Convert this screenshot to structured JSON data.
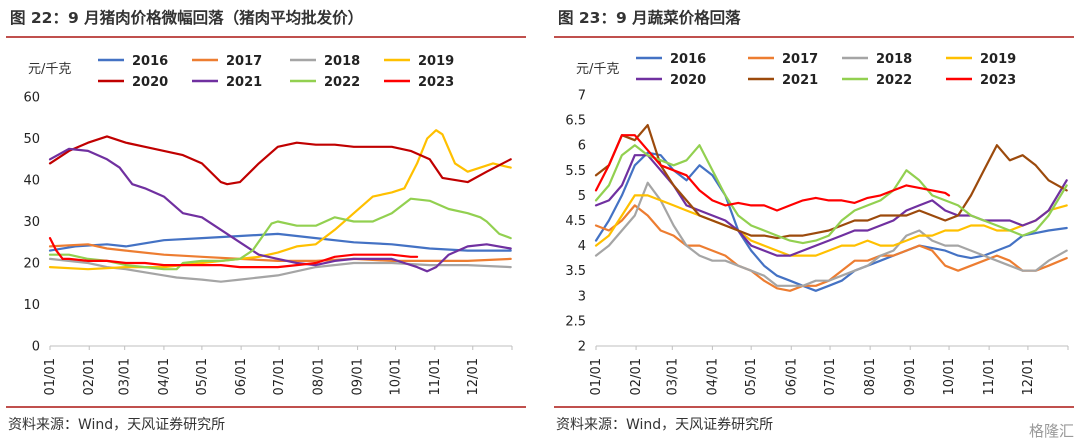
{
  "panels": [
    {
      "title": "图 22：9 月猪肉价格微幅回落（猪肉平均批发价）",
      "unit": "元/千克",
      "source": "资料来源：Wind，天风证券研究所"
    },
    {
      "title": "图 23：9 月蔬菜价格回落",
      "unit": "元/千克",
      "source": "资料来源：Wind，天风证券研究所"
    }
  ],
  "watermark": "格隆汇",
  "chart_data": [
    {
      "type": "line",
      "title": "图 22：9 月猪肉价格微幅回落（猪肉平均批发价）",
      "ylabel": "元/千克",
      "ylim": [
        0,
        60
      ],
      "yticks": [
        0,
        10,
        20,
        30,
        40,
        50,
        60
      ],
      "x_labels": [
        "01/01",
        "02/01",
        "03/01",
        "04/01",
        "05/01",
        "06/01",
        "07/01",
        "08/01",
        "09/01",
        "10/01",
        "11/01",
        "12/01"
      ],
      "xlim": [
        0,
        365
      ],
      "legend": "top",
      "series": [
        {
          "name": "2016",
          "color": "#4472c4",
          "x": [
            0,
            20,
            45,
            60,
            90,
            120,
            150,
            180,
            195,
            210,
            240,
            270,
            285,
            300,
            330,
            364
          ],
          "y": [
            23,
            24,
            24.5,
            24,
            25.5,
            26,
            26.5,
            27,
            26.5,
            26,
            25,
            24.5,
            24,
            23.5,
            23,
            23
          ]
        },
        {
          "name": "2017",
          "color": "#ed7d31",
          "x": [
            0,
            30,
            45,
            60,
            90,
            120,
            150,
            180,
            210,
            240,
            270,
            300,
            330,
            364
          ],
          "y": [
            24,
            24.5,
            23.5,
            23,
            22,
            21.5,
            21,
            20.5,
            20.5,
            21,
            20.5,
            20.5,
            20.5,
            21
          ]
        },
        {
          "name": "2018",
          "color": "#a5a5a5",
          "x": [
            0,
            30,
            45,
            60,
            90,
            100,
            120,
            135,
            150,
            165,
            180,
            210,
            240,
            270,
            300,
            330,
            364
          ],
          "y": [
            21,
            20,
            19,
            18.5,
            17,
            16.5,
            16,
            15.5,
            16,
            16.5,
            17,
            19,
            20,
            20,
            19.5,
            19.5,
            19
          ]
        },
        {
          "name": "2019",
          "color": "#ffc000",
          "x": [
            0,
            30,
            60,
            90,
            120,
            150,
            165,
            180,
            195,
            210,
            225,
            240,
            255,
            270,
            280,
            290,
            298,
            305,
            310,
            320,
            330,
            340,
            350,
            364
          ],
          "y": [
            19,
            18.5,
            19,
            19,
            20,
            21,
            21.5,
            22.5,
            24,
            24.5,
            28,
            32,
            36,
            37,
            38,
            44,
            50,
            52,
            51,
            44,
            42,
            43,
            44,
            43
          ]
        },
        {
          "name": "2020",
          "color": "#c00000",
          "x": [
            0,
            15,
            30,
            45,
            60,
            75,
            90,
            105,
            120,
            135,
            140,
            150,
            165,
            180,
            195,
            210,
            225,
            240,
            255,
            270,
            285,
            300,
            310,
            330,
            345,
            364
          ],
          "y": [
            44,
            47,
            49,
            50.5,
            49,
            48,
            47,
            46,
            44,
            39.5,
            39,
            39.5,
            44,
            48,
            49,
            48.5,
            48.5,
            48,
            48,
            48,
            47,
            45,
            40.5,
            39.5,
            42,
            45
          ]
        },
        {
          "name": "2021",
          "color": "#7030a0",
          "x": [
            0,
            15,
            30,
            45,
            55,
            65,
            75,
            90,
            105,
            120,
            135,
            150,
            165,
            180,
            195,
            210,
            225,
            240,
            255,
            270,
            280,
            290,
            298,
            305,
            315,
            330,
            345,
            364
          ],
          "y": [
            45,
            47.5,
            47,
            45,
            43,
            39,
            38,
            36,
            32,
            31,
            28,
            25,
            22,
            21,
            20,
            19.5,
            20.5,
            21,
            21,
            21,
            20,
            19,
            18,
            19,
            22,
            24,
            24.5,
            23.5
          ]
        },
        {
          "name": "2022",
          "color": "#92d050",
          "x": [
            0,
            15,
            30,
            45,
            60,
            75,
            90,
            100,
            105,
            120,
            135,
            150,
            160,
            175,
            180,
            195,
            210,
            225,
            240,
            255,
            270,
            285,
            300,
            315,
            330,
            340,
            345,
            355,
            364
          ],
          "y": [
            22,
            22,
            21,
            20.5,
            19.5,
            19,
            18.5,
            18.5,
            20,
            20.5,
            20.5,
            21,
            23,
            29.5,
            30,
            29,
            29,
            31,
            30,
            30,
            32,
            35.5,
            35,
            33,
            32,
            31,
            30,
            27,
            26
          ]
        },
        {
          "name": "2023",
          "color": "#ff0000",
          "x": [
            0,
            5,
            10,
            15,
            30,
            45,
            60,
            75,
            90,
            105,
            120,
            135,
            150,
            165,
            180,
            195,
            210,
            225,
            240,
            255,
            270,
            285,
            290
          ],
          "y": [
            26,
            23,
            21,
            21,
            20.5,
            20.5,
            20,
            20,
            19.5,
            19.5,
            19.5,
            19.5,
            19,
            19,
            19,
            19.5,
            20,
            21.5,
            22,
            22,
            22,
            21.5,
            21.5
          ]
        }
      ]
    },
    {
      "type": "line",
      "title": "图 23：9 月蔬菜价格回落",
      "ylabel": "元/千克",
      "ylim": [
        2,
        7
      ],
      "yticks": [
        2,
        2.5,
        3,
        3.5,
        4,
        4.5,
        5,
        5.5,
        6,
        6.5,
        7
      ],
      "x_labels": [
        "01/01",
        "02/01",
        "03/01",
        "04/01",
        "05/01",
        "06/01",
        "07/01",
        "08/01",
        "09/01",
        "10/01",
        "11/01",
        "12/01"
      ],
      "xlim": [
        0,
        365
      ],
      "legend": "top",
      "series": [
        {
          "name": "2016",
          "color": "#4472c4",
          "x": [
            0,
            10,
            20,
            30,
            40,
            50,
            60,
            70,
            80,
            90,
            100,
            110,
            120,
            130,
            140,
            150,
            160,
            170,
            180,
            190,
            200,
            210,
            220,
            230,
            240,
            250,
            260,
            270,
            280,
            290,
            300,
            310,
            320,
            330,
            340,
            350,
            364
          ],
          "y": [
            4.1,
            4.5,
            5.0,
            5.6,
            5.85,
            5.8,
            5.5,
            5.3,
            5.6,
            5.4,
            5.0,
            4.3,
            3.9,
            3.6,
            3.4,
            3.3,
            3.2,
            3.1,
            3.2,
            3.3,
            3.5,
            3.6,
            3.7,
            3.8,
            3.9,
            4.0,
            3.95,
            3.9,
            3.8,
            3.75,
            3.8,
            3.9,
            4.0,
            4.2,
            4.25,
            4.3,
            4.35
          ]
        },
        {
          "name": "2017",
          "color": "#ed7d31",
          "x": [
            0,
            10,
            20,
            30,
            40,
            50,
            60,
            70,
            80,
            90,
            100,
            110,
            120,
            130,
            140,
            150,
            160,
            170,
            180,
            190,
            200,
            210,
            220,
            230,
            240,
            250,
            260,
            270,
            280,
            290,
            300,
            310,
            320,
            330,
            340,
            350,
            364
          ],
          "y": [
            4.4,
            4.3,
            4.5,
            4.8,
            4.6,
            4.3,
            4.2,
            4.0,
            4.0,
            3.9,
            3.8,
            3.6,
            3.5,
            3.3,
            3.15,
            3.1,
            3.2,
            3.2,
            3.3,
            3.5,
            3.7,
            3.7,
            3.8,
            3.8,
            3.9,
            4.0,
            3.9,
            3.6,
            3.5,
            3.6,
            3.7,
            3.8,
            3.7,
            3.5,
            3.5,
            3.6,
            3.75
          ]
        },
        {
          "name": "2018",
          "color": "#a5a5a5",
          "x": [
            0,
            10,
            20,
            30,
            40,
            50,
            60,
            70,
            80,
            90,
            100,
            110,
            120,
            130,
            140,
            150,
            160,
            170,
            180,
            190,
            200,
            210,
            220,
            230,
            240,
            250,
            260,
            270,
            280,
            290,
            300,
            310,
            320,
            330,
            340,
            350,
            364
          ],
          "y": [
            3.8,
            4.0,
            4.3,
            4.6,
            5.25,
            4.9,
            4.4,
            4.0,
            3.8,
            3.7,
            3.7,
            3.6,
            3.5,
            3.4,
            3.2,
            3.2,
            3.2,
            3.3,
            3.3,
            3.4,
            3.5,
            3.6,
            3.8,
            3.9,
            4.2,
            4.3,
            4.1,
            4.0,
            4.0,
            3.9,
            3.8,
            3.7,
            3.6,
            3.5,
            3.5,
            3.7,
            3.9
          ]
        },
        {
          "name": "2019",
          "color": "#ffc000",
          "x": [
            0,
            10,
            20,
            30,
            40,
            50,
            60,
            70,
            80,
            90,
            100,
            110,
            120,
            130,
            140,
            150,
            160,
            170,
            180,
            190,
            200,
            210,
            220,
            230,
            240,
            250,
            260,
            270,
            280,
            290,
            300,
            310,
            320,
            330,
            340,
            350,
            364
          ],
          "y": [
            4.0,
            4.2,
            4.6,
            5.0,
            5.0,
            4.9,
            4.8,
            4.7,
            4.6,
            4.5,
            4.4,
            4.3,
            4.1,
            4.0,
            3.9,
            3.8,
            3.8,
            3.8,
            3.9,
            4.0,
            4.0,
            4.1,
            4.0,
            4.0,
            4.1,
            4.2,
            4.2,
            4.3,
            4.3,
            4.4,
            4.4,
            4.3,
            4.3,
            4.4,
            4.5,
            4.7,
            4.8
          ]
        },
        {
          "name": "2020",
          "color": "#7030a0",
          "x": [
            0,
            10,
            20,
            30,
            40,
            50,
            60,
            70,
            80,
            90,
            100,
            110,
            120,
            130,
            140,
            150,
            160,
            170,
            180,
            190,
            200,
            210,
            220,
            230,
            240,
            250,
            260,
            270,
            280,
            290,
            300,
            310,
            320,
            330,
            340,
            350,
            364
          ],
          "y": [
            4.8,
            4.9,
            5.2,
            5.8,
            5.8,
            5.5,
            5.2,
            4.8,
            4.7,
            4.6,
            4.5,
            4.3,
            4.0,
            3.9,
            3.8,
            3.8,
            3.9,
            4.0,
            4.1,
            4.2,
            4.3,
            4.3,
            4.4,
            4.5,
            4.7,
            4.8,
            4.9,
            4.7,
            4.6,
            4.6,
            4.5,
            4.5,
            4.5,
            4.4,
            4.5,
            4.7,
            5.3
          ]
        },
        {
          "name": "2021",
          "color": "#9c4a0c",
          "x": [
            0,
            10,
            20,
            30,
            40,
            50,
            60,
            70,
            80,
            90,
            100,
            110,
            120,
            130,
            140,
            150,
            160,
            170,
            180,
            190,
            200,
            210,
            220,
            230,
            240,
            250,
            260,
            270,
            280,
            290,
            300,
            310,
            320,
            330,
            340,
            350,
            364
          ],
          "y": [
            5.4,
            5.6,
            6.2,
            6.1,
            6.4,
            5.6,
            5.2,
            4.9,
            4.6,
            4.5,
            4.4,
            4.3,
            4.2,
            4.2,
            4.15,
            4.2,
            4.2,
            4.25,
            4.3,
            4.4,
            4.5,
            4.5,
            4.6,
            4.6,
            4.6,
            4.7,
            4.6,
            4.5,
            4.6,
            5.0,
            5.5,
            6.0,
            5.7,
            5.8,
            5.6,
            5.3,
            5.1
          ]
        },
        {
          "name": "2022",
          "color": "#92d050",
          "x": [
            0,
            10,
            20,
            30,
            40,
            50,
            60,
            70,
            80,
            90,
            100,
            110,
            120,
            130,
            140,
            150,
            160,
            170,
            180,
            190,
            200,
            210,
            220,
            230,
            240,
            250,
            260,
            270,
            280,
            290,
            300,
            310,
            320,
            330,
            340,
            350,
            364
          ],
          "y": [
            4.9,
            5.2,
            5.8,
            6.0,
            5.8,
            5.7,
            5.6,
            5.7,
            6.0,
            5.5,
            5.0,
            4.6,
            4.4,
            4.3,
            4.2,
            4.1,
            4.05,
            4.1,
            4.2,
            4.5,
            4.7,
            4.8,
            4.9,
            5.1,
            5.5,
            5.3,
            5.0,
            4.9,
            4.8,
            4.6,
            4.5,
            4.4,
            4.3,
            4.2,
            4.3,
            4.6,
            5.2
          ]
        },
        {
          "name": "2023",
          "color": "#ff0000",
          "x": [
            0,
            10,
            20,
            30,
            40,
            50,
            60,
            70,
            80,
            90,
            100,
            110,
            120,
            130,
            140,
            150,
            160,
            170,
            180,
            190,
            200,
            210,
            220,
            230,
            240,
            250,
            260,
            270,
            273
          ],
          "y": [
            5.1,
            5.6,
            6.2,
            6.2,
            5.9,
            5.6,
            5.5,
            5.4,
            5.1,
            4.9,
            4.8,
            4.85,
            4.8,
            4.8,
            4.7,
            4.8,
            4.9,
            4.95,
            4.9,
            4.9,
            4.85,
            4.95,
            5.0,
            5.1,
            5.2,
            5.15,
            5.1,
            5.05,
            5.0
          ]
        }
      ]
    }
  ]
}
